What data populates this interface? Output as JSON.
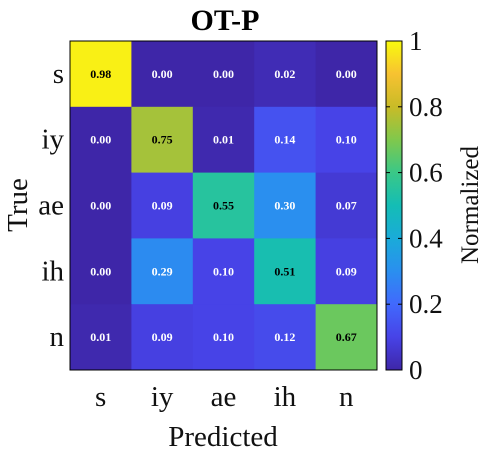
{
  "chart_data": {
    "type": "heatmap",
    "title": "OT-P",
    "xlabel": "Predicted",
    "ylabel": "True",
    "x_categories": [
      "s",
      "iy",
      "ae",
      "ih",
      "n"
    ],
    "y_categories": [
      "s",
      "iy",
      "ae",
      "ih",
      "n"
    ],
    "values": [
      [
        0.98,
        0.0,
        0.0,
        0.02,
        0.0
      ],
      [
        0.0,
        0.75,
        0.01,
        0.14,
        0.1
      ],
      [
        0.0,
        0.09,
        0.55,
        0.3,
        0.07
      ],
      [
        0.0,
        0.29,
        0.1,
        0.51,
        0.09
      ],
      [
        0.01,
        0.09,
        0.1,
        0.12,
        0.67
      ]
    ],
    "cell_labels": [
      [
        "0.98",
        "0.00",
        "0.00",
        "0.02",
        "0.00"
      ],
      [
        "0.00",
        "0.75",
        "0.01",
        "0.14",
        "0.10"
      ],
      [
        "0.00",
        "0.09",
        "0.55",
        "0.30",
        "0.07"
      ],
      [
        "0.00",
        "0.29",
        "0.10",
        "0.51",
        "0.09"
      ],
      [
        "0.01",
        "0.09",
        "0.10",
        "0.12",
        "0.67"
      ]
    ],
    "bold_cells": [
      [
        0,
        0
      ],
      [
        1,
        1
      ],
      [
        2,
        2
      ],
      [
        3,
        3
      ],
      [
        4,
        4
      ],
      [
        2,
        3
      ],
      [
        3,
        1
      ]
    ],
    "colorbar": {
      "label": "Normalized",
      "range": [
        0,
        1
      ],
      "ticks": [
        "0",
        "0.2",
        "0.4",
        "0.6",
        "0.8",
        "1"
      ],
      "colormap": "parula"
    }
  }
}
